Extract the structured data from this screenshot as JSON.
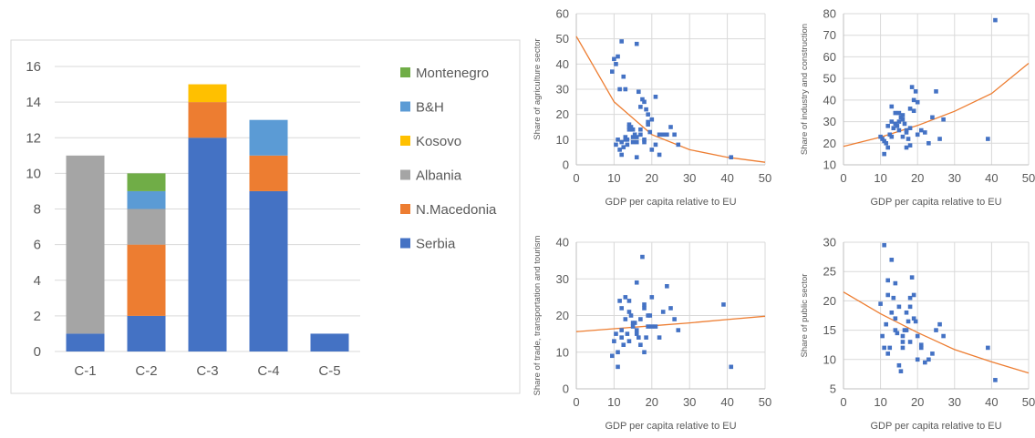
{
  "chart_data": [
    {
      "type": "bar",
      "stacked": true,
      "categories": [
        "C-1",
        "C-2",
        "C-3",
        "C-4",
        "C-5"
      ],
      "ylim": [
        0,
        16
      ],
      "yticks": [
        0,
        2,
        4,
        6,
        8,
        10,
        12,
        14,
        16
      ],
      "grid": true,
      "legend": "right",
      "series": [
        {
          "name": "Serbia",
          "color": "#4472C4",
          "values": [
            1,
            2,
            12,
            9,
            1
          ]
        },
        {
          "name": "N.Macedonia",
          "color": "#ED7D31",
          "values": [
            0,
            4,
            2,
            2,
            0
          ]
        },
        {
          "name": "Albania",
          "color": "#A5A5A5",
          "values": [
            10,
            2,
            0,
            0,
            0
          ]
        },
        {
          "name": "Kosovo",
          "color": "#FFC000",
          "values": [
            0,
            0,
            1,
            0,
            0
          ]
        },
        {
          "name": "B&H",
          "color": "#5B9BD5",
          "values": [
            0,
            1,
            0,
            2,
            0
          ]
        },
        {
          "name": "Montenegro",
          "color": "#70AD47",
          "values": [
            0,
            1,
            0,
            0,
            0
          ]
        }
      ]
    },
    {
      "type": "scatter",
      "xlabel": "GDP per capita relative to EU",
      "ylabel": "Share of agriculture sector",
      "xlim": [
        0,
        50
      ],
      "ylim": [
        0,
        60
      ],
      "xticks": [
        0,
        10,
        20,
        30,
        40,
        50
      ],
      "yticks": [
        0,
        10,
        20,
        30,
        40,
        50,
        60
      ],
      "grid": true,
      "point_color": "#4472C4",
      "trend_color": "#ED7D31",
      "trend": "exponential",
      "trend_points": {
        "x": [
          0,
          10,
          20,
          30,
          40,
          50
        ],
        "y": [
          51,
          25,
          12,
          6,
          3,
          1
        ]
      },
      "x": [
        9.5,
        10.5,
        11,
        11.5,
        12,
        12.5,
        13,
        13.5,
        14,
        15,
        16,
        10,
        10.5,
        11,
        11.5,
        12,
        12.5,
        13,
        13.5,
        14,
        14.5,
        15,
        15.5,
        16,
        16.5,
        17,
        17.5,
        18,
        18.5,
        19,
        19.5,
        20,
        21,
        22,
        24,
        25,
        26,
        27,
        41,
        19,
        18,
        14,
        12,
        13,
        17,
        16,
        15,
        18,
        20,
        23,
        17,
        16,
        19,
        21,
        22
      ],
      "y": [
        37,
        40,
        43,
        30,
        49,
        35,
        30,
        10,
        15,
        11,
        48,
        42,
        8,
        10,
        6,
        4,
        7,
        11,
        8,
        14,
        15,
        14,
        12,
        9,
        29,
        23,
        26,
        25,
        22,
        16,
        13,
        18,
        27,
        12,
        12,
        15,
        12,
        8,
        3,
        20,
        9,
        16,
        9,
        10,
        12,
        11,
        9,
        10,
        6,
        12,
        14,
        3,
        17,
        8,
        4
      ]
    },
    {
      "type": "scatter",
      "xlabel": "GDP per capita relative to EU",
      "ylabel": "Share of industry and construction",
      "xlim": [
        0,
        50
      ],
      "ylim": [
        10,
        80
      ],
      "xticks": [
        0,
        10,
        20,
        30,
        40,
        50
      ],
      "yticks": [
        10,
        20,
        30,
        40,
        50,
        60,
        70,
        80
      ],
      "grid": true,
      "point_color": "#4472C4",
      "trend_color": "#ED7D31",
      "trend": "exponential",
      "trend_points": {
        "x": [
          0,
          10,
          20,
          30,
          40,
          50
        ],
        "y": [
          18.5,
          22.8,
          28.2,
          34.8,
          43,
          57
        ]
      },
      "x": [
        10,
        10.5,
        11,
        11.5,
        12,
        12.5,
        13,
        13.5,
        14,
        14.5,
        15,
        15.5,
        16,
        16.5,
        17,
        17.5,
        18,
        18.5,
        19,
        19.5,
        20,
        21,
        22,
        23,
        24,
        25,
        26,
        27,
        39,
        41,
        11,
        12,
        13,
        14,
        15,
        16,
        17,
        18,
        19,
        20,
        13,
        15,
        17,
        18,
        16
      ],
      "y": [
        23,
        22,
        21,
        20,
        18,
        24,
        30,
        27,
        29,
        28,
        34,
        32,
        31,
        29,
        25,
        22,
        36,
        46,
        40,
        44,
        39,
        26,
        25,
        20,
        32,
        44,
        22,
        31,
        22,
        77,
        15,
        28,
        23,
        34,
        26,
        33,
        18,
        19,
        35,
        24,
        37,
        30,
        26,
        27,
        23
      ]
    },
    {
      "type": "scatter",
      "xlabel": "GDP per capita relative to EU",
      "ylabel": "Share of trade, transportation and tourism",
      "xlim": [
        0,
        50
      ],
      "ylim": [
        0,
        40
      ],
      "xticks": [
        0,
        10,
        20,
        30,
        40,
        50
      ],
      "yticks": [
        0,
        10,
        20,
        30,
        40
      ],
      "grid": true,
      "point_color": "#4472C4",
      "trend_color": "#ED7D31",
      "trend": "exponential",
      "trend_points": {
        "x": [
          0,
          10,
          20,
          30,
          40,
          50
        ],
        "y": [
          15.6,
          16.4,
          17.2,
          18,
          18.9,
          19.8
        ]
      },
      "x": [
        9.5,
        10,
        10.5,
        11,
        11.5,
        12,
        12.5,
        13,
        13.5,
        14,
        14.5,
        15,
        15.5,
        16,
        16.5,
        17,
        17.5,
        18,
        18.5,
        19,
        19.5,
        20,
        21,
        22,
        23,
        24,
        25,
        26,
        27,
        39,
        41,
        11,
        12,
        13,
        14,
        15,
        16,
        17,
        18,
        19,
        20,
        12,
        14,
        16,
        18
      ],
      "y": [
        9,
        13,
        15,
        6,
        24,
        22,
        12,
        25,
        15,
        24,
        20,
        17,
        18,
        29,
        14,
        19,
        36,
        22,
        14,
        17,
        20,
        25,
        17,
        14,
        21,
        28,
        22,
        19,
        16,
        23,
        6,
        10,
        16,
        19,
        13,
        18,
        16,
        12,
        10,
        20,
        17,
        14,
        21,
        15,
        23
      ]
    },
    {
      "type": "scatter",
      "xlabel": "GDP per capita relative to EU",
      "ylabel": "Share of public sector",
      "xlim": [
        0,
        50
      ],
      "ylim": [
        5,
        30
      ],
      "xticks": [
        0,
        10,
        20,
        30,
        40,
        50
      ],
      "yticks": [
        5,
        10,
        15,
        20,
        25,
        30
      ],
      "grid": true,
      "point_color": "#4472C4",
      "trend_color": "#ED7D31",
      "trend": "exponential",
      "trend_points": {
        "x": [
          0,
          10,
          20,
          30,
          40,
          50
        ],
        "y": [
          21.5,
          17.8,
          14.6,
          11.7,
          9.6,
          7.7
        ]
      },
      "x": [
        10,
        10.5,
        11,
        11.5,
        12,
        12.5,
        13,
        13.5,
        14,
        14.5,
        15,
        15.5,
        16,
        16.5,
        17,
        17.5,
        18,
        18.5,
        19,
        19.5,
        20,
        21,
        22,
        23,
        24,
        25,
        26,
        27,
        39,
        41,
        11,
        12,
        13,
        14,
        15,
        16,
        17,
        18,
        19,
        20,
        12,
        14,
        16,
        18,
        21
      ],
      "y": [
        19.5,
        14,
        29.5,
        16,
        23.5,
        12,
        27,
        20.5,
        17,
        14.5,
        19,
        8,
        13,
        15,
        18,
        16.5,
        20.5,
        24,
        21,
        16.5,
        14,
        12.5,
        9.5,
        10,
        11,
        15,
        16,
        14,
        12,
        6.5,
        12,
        11,
        18,
        15,
        9,
        12,
        15,
        13,
        17,
        10,
        21,
        23,
        14,
        19,
        12
      ]
    }
  ]
}
